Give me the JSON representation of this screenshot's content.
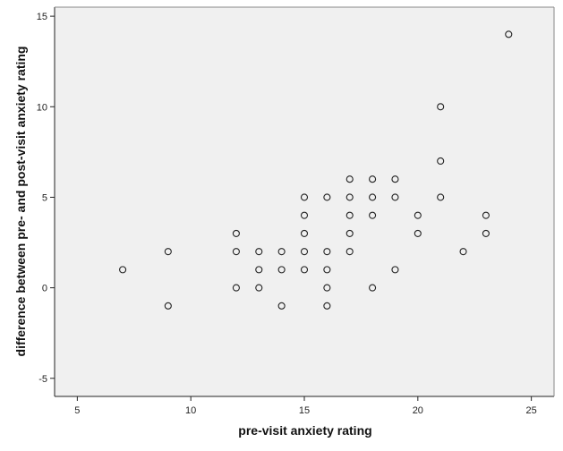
{
  "chart_data": {
    "type": "scatter",
    "title": "",
    "xlabel": "pre-visit anxiety rating",
    "ylabel": "difference between pre- and post-visit anxiety rating",
    "xlim": [
      4,
      26
    ],
    "ylim": [
      -6,
      15.5
    ],
    "xticks": [
      5,
      10,
      15,
      20,
      25
    ],
    "yticks": [
      -5,
      0,
      5,
      10,
      15
    ],
    "grid": false,
    "colors": {
      "plot_bg": "#f0f0f0",
      "marker_stroke": "#222222",
      "axis": "#222222"
    },
    "points": [
      {
        "x": 7,
        "y": 1
      },
      {
        "x": 9,
        "y": 2
      },
      {
        "x": 9,
        "y": -1
      },
      {
        "x": 12,
        "y": 3
      },
      {
        "x": 12,
        "y": 2
      },
      {
        "x": 12,
        "y": 0
      },
      {
        "x": 13,
        "y": 2
      },
      {
        "x": 13,
        "y": 1
      },
      {
        "x": 13,
        "y": 0
      },
      {
        "x": 14,
        "y": 2
      },
      {
        "x": 14,
        "y": 1
      },
      {
        "x": 14,
        "y": -1
      },
      {
        "x": 15,
        "y": 5
      },
      {
        "x": 15,
        "y": 4
      },
      {
        "x": 15,
        "y": 3
      },
      {
        "x": 15,
        "y": 2
      },
      {
        "x": 15,
        "y": 1
      },
      {
        "x": 16,
        "y": 5
      },
      {
        "x": 16,
        "y": 2
      },
      {
        "x": 16,
        "y": 1
      },
      {
        "x": 16,
        "y": 0
      },
      {
        "x": 16,
        "y": -1
      },
      {
        "x": 17,
        "y": 6
      },
      {
        "x": 17,
        "y": 5
      },
      {
        "x": 17,
        "y": 4
      },
      {
        "x": 17,
        "y": 3
      },
      {
        "x": 17,
        "y": 2
      },
      {
        "x": 18,
        "y": 6
      },
      {
        "x": 18,
        "y": 5
      },
      {
        "x": 18,
        "y": 4
      },
      {
        "x": 18,
        "y": 0
      },
      {
        "x": 19,
        "y": 6
      },
      {
        "x": 19,
        "y": 5
      },
      {
        "x": 19,
        "y": 1
      },
      {
        "x": 20,
        "y": 4
      },
      {
        "x": 20,
        "y": 3
      },
      {
        "x": 21,
        "y": 10
      },
      {
        "x": 21,
        "y": 7
      },
      {
        "x": 21,
        "y": 5
      },
      {
        "x": 22,
        "y": 2
      },
      {
        "x": 23,
        "y": 4
      },
      {
        "x": 23,
        "y": 3
      },
      {
        "x": 24,
        "y": 14
      }
    ]
  }
}
